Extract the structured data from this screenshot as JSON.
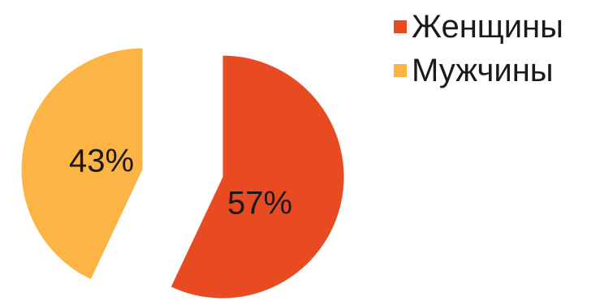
{
  "chart_data": {
    "type": "pie",
    "categories": [
      "Женщины",
      "Мужчины"
    ],
    "values": [
      57,
      43
    ],
    "value_labels": [
      "57%",
      "43%"
    ],
    "colors": [
      "#E84B22",
      "#FCB444"
    ],
    "exploded": true,
    "legend_position": "top-right"
  }
}
